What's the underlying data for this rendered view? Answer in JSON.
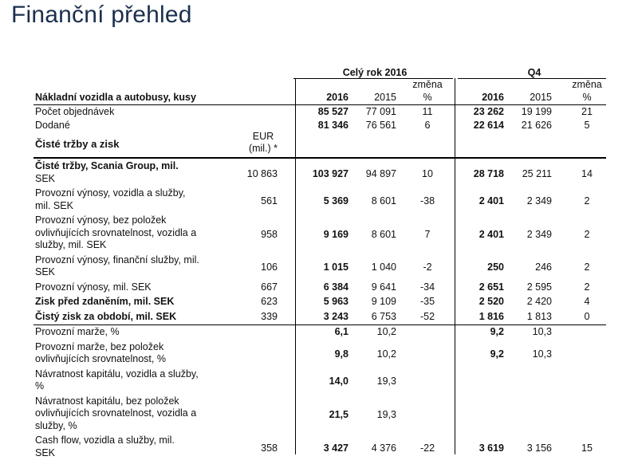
{
  "title": "Finanční přehled",
  "header": {
    "group_full_year": "Celý rok 2016",
    "group_q4": "Q4",
    "section_label": "Nákladní vozidla a autobusy, kusy",
    "col_2016": "2016",
    "col_2015": "2015",
    "col_change_a": "změna",
    "col_change_b": "%",
    "col_q4_2016": "2016",
    "col_q4_2015": "2015",
    "col_q4_change_a": "změna",
    "col_q4_change_b": "%"
  },
  "units_rows": [
    {
      "label": "Počet objednávek",
      "fy2016": "85 527",
      "fy2015": "77 091",
      "fy_change": "11",
      "q4_2016": "23 262",
      "q4_2015": "19 199",
      "q4_change": "21"
    },
    {
      "label": "Dodané",
      "fy2016": "81 346",
      "fy2015": "76 561",
      "fy_change": "6",
      "q4_2016": "22 614",
      "q4_2015": "21 626",
      "q4_change": "5"
    }
  ],
  "section2": {
    "label": "Čisté tržby a zisk",
    "eur_a": "EUR",
    "eur_b": "(mil.) *"
  },
  "finance_rows": [
    {
      "label_lines": [
        "Čisté tržby, Scania Group, mil.",
        "SEK"
      ],
      "eur": "10 863",
      "fy2016": "103 927",
      "fy2015": "94 897",
      "fy_change": "10",
      "q4_2016": "28 718",
      "q4_2015": "25 211",
      "q4_change": "14"
    },
    {
      "label_lines": [
        "Provozní výnosy, vozidla a služby,",
        "mil. SEK"
      ],
      "eur": "561",
      "fy2016": "5 369",
      "fy2015": "8 601",
      "fy_change": "-38",
      "q4_2016": "2 401",
      "q4_2015": "2 349",
      "q4_change": "2"
    },
    {
      "label_lines": [
        "Provozní výnosy, bez položek",
        "ovlivňujících srovnatelnost, vozidla a",
        "služby, mil. SEK"
      ],
      "eur": "958",
      "fy2016": "9 169",
      "fy2015": "8 601",
      "fy_change": "7",
      "q4_2016": "2 401",
      "q4_2015": "2 349",
      "q4_change": "2"
    },
    {
      "label_lines": [
        "Provozní výnosy, finanční služby, mil.",
        "SEK"
      ],
      "eur": "106",
      "fy2016": "1 015",
      "fy2015": "1 040",
      "fy_change": "-2",
      "q4_2016": "250",
      "q4_2015": "246",
      "q4_change": "2"
    },
    {
      "label_lines": [
        "Provozní výnosy, mil. SEK"
      ],
      "eur": "667",
      "fy2016": "6 384",
      "fy2015": "9 641",
      "fy_change": "-34",
      "q4_2016": "2 651",
      "q4_2015": "2 595",
      "q4_change": "2"
    },
    {
      "label_lines": [
        "Zisk před zdaněním, mil. SEK"
      ],
      "eur": "623",
      "fy2016": "5 963",
      "fy2015": "9 109",
      "fy_change": "-35",
      "q4_2016": "2 520",
      "q4_2015": "2 420",
      "q4_change": "4"
    },
    {
      "label_lines": [
        "Čistý zisk za období, mil. SEK"
      ],
      "eur": "339",
      "fy2016": "3 243",
      "fy2015": "6 753",
      "fy_change": "-52",
      "q4_2016": "1 816",
      "q4_2015": "1 813",
      "q4_change": "0"
    }
  ],
  "ratio_rows": [
    {
      "label_lines": [
        "Provozní marže, %"
      ],
      "eur": "",
      "fy2016": "6,1",
      "fy2015": "10,2",
      "fy_change": "",
      "q4_2016": "9,2",
      "q4_2015": "10,3",
      "q4_change": ""
    },
    {
      "label_lines": [
        "Provozní marže, bez položek",
        "ovlivňujících srovnatelnost, %"
      ],
      "eur": "",
      "fy2016": "9,8",
      "fy2015": "10,2",
      "fy_change": "",
      "q4_2016": "9,2",
      "q4_2015": "10,3",
      "q4_change": ""
    },
    {
      "label_lines": [
        "Návratnost kapitálu, vozidla a služby,",
        "%"
      ],
      "eur": "",
      "fy2016": "14,0",
      "fy2015": "19,3",
      "fy_change": "",
      "q4_2016": "",
      "q4_2015": "",
      "q4_change": ""
    },
    {
      "label_lines": [
        "Návratnost kapitálu, bez položek",
        "ovlivňujících srovnatelnost, vozidla a",
        "služby, %"
      ],
      "eur": "",
      "fy2016": "21,5",
      "fy2015": "19,3",
      "fy_change": "",
      "q4_2016": "",
      "q4_2015": "",
      "q4_change": ""
    },
    {
      "label_lines": [
        "Cash flow, vozidla a služby, mil.",
        "SEK"
      ],
      "eur": "358",
      "fy2016": "3 427",
      "fy2015": "4 376",
      "fy_change": "-22",
      "q4_2016": "3 619",
      "q4_2015": "3 156",
      "q4_change": "15"
    }
  ]
}
